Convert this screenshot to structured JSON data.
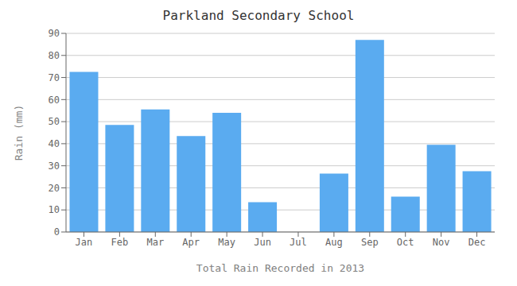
{
  "chart_data": {
    "type": "bar",
    "title": "Parkland Secondary School",
    "xlabel": "Total Rain Recorded in 2013",
    "ylabel": "Rain (mm)",
    "categories": [
      "Jan",
      "Feb",
      "Mar",
      "Apr",
      "May",
      "Jun",
      "Jul",
      "Aug",
      "Sep",
      "Oct",
      "Nov",
      "Dec"
    ],
    "values": [
      72.5,
      48.5,
      55.5,
      43.5,
      54.0,
      13.5,
      0,
      26.5,
      87.0,
      16.0,
      39.5,
      27.5
    ],
    "color": "#5aabf0",
    "ylim": [
      0,
      90
    ],
    "yticks": [
      0,
      10,
      20,
      30,
      40,
      50,
      60,
      70,
      80,
      90
    ],
    "grid": true
  }
}
